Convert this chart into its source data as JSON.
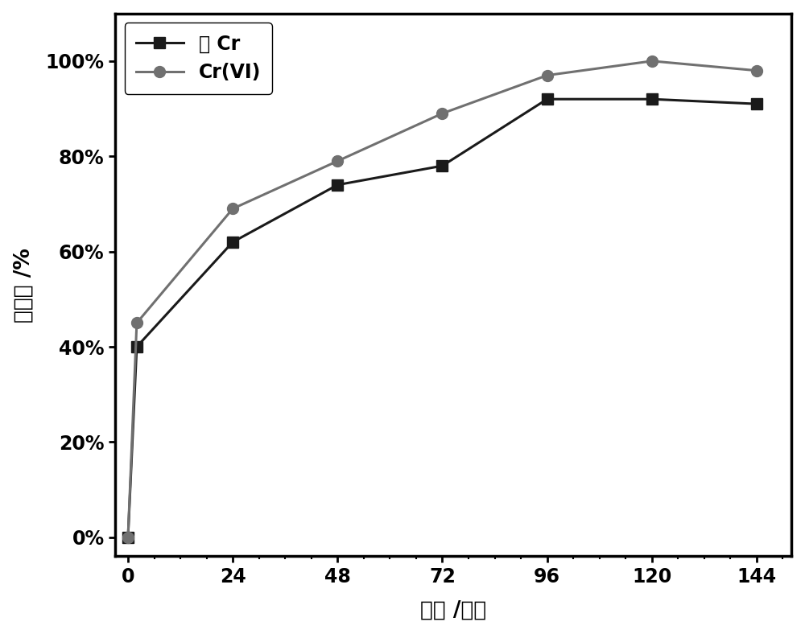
{
  "x_total_cr": [
    0,
    2,
    24,
    48,
    72,
    96,
    120,
    144
  ],
  "y_total_cr": [
    0.0,
    0.4,
    0.62,
    0.74,
    0.78,
    0.92,
    0.92,
    0.91
  ],
  "x_cr_vi": [
    0,
    2,
    24,
    48,
    72,
    96,
    120,
    144
  ],
  "y_cr_vi": [
    0.0,
    0.45,
    0.69,
    0.79,
    0.89,
    0.97,
    1.0,
    0.98
  ],
  "label_total_cr": "总 Cr",
  "label_cr_vi": "Cr(VI)",
  "xlabel": "时间 /小时",
  "ylabel": "去除率 /%",
  "color_total_cr": "#1a1a1a",
  "color_cr_vi": "#707070",
  "xticks": [
    0,
    24,
    48,
    72,
    96,
    120,
    144
  ],
  "yticks": [
    0.0,
    0.2,
    0.4,
    0.6,
    0.8,
    1.0
  ],
  "ylim": [
    -0.04,
    1.1
  ],
  "xlim": [
    -3,
    152
  ],
  "marker_total_cr": "s",
  "marker_cr_vi": "o",
  "markersize": 10,
  "linewidth": 2.2,
  "legend_fontsize": 17,
  "axis_label_fontsize": 19,
  "tick_fontsize": 17,
  "background_color": "#ffffff"
}
